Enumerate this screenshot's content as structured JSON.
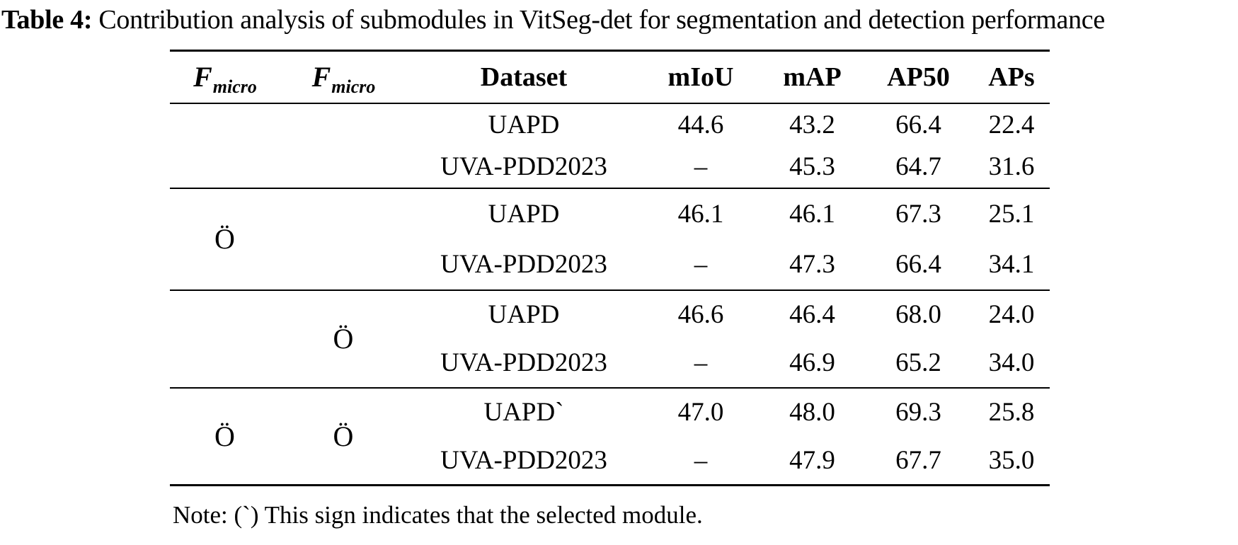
{
  "caption": {
    "label": "Table 4:",
    "text": " Contribution analysis of submodules in VitSeg-det for segmentation and detection performance"
  },
  "table": {
    "f_header": {
      "base": "F",
      "sub": "micro"
    },
    "columns": [
      "Dataset",
      "mIoU",
      "mAP",
      "AP50",
      "APs"
    ],
    "selected_mark": "Ö",
    "groups": [
      {
        "f1": "",
        "f2": "",
        "rows": [
          {
            "dataset": "UAPD",
            "miou": "44.6",
            "map": "43.2",
            "ap50": "66.4",
            "aps": "22.4"
          },
          {
            "dataset": "UVA-PDD2023",
            "miou": "–",
            "map": "45.3",
            "ap50": "64.7",
            "aps": "31.6"
          }
        ]
      },
      {
        "f1": "Ö",
        "f2": "",
        "rows": [
          {
            "dataset": "UAPD",
            "miou": "46.1",
            "map": "46.1",
            "ap50": "67.3",
            "aps": "25.1"
          },
          {
            "dataset": "UVA-PDD2023",
            "miou": "–",
            "map": "47.3",
            "ap50": "66.4",
            "aps": "34.1"
          }
        ]
      },
      {
        "f1": "",
        "f2": "Ö",
        "rows": [
          {
            "dataset": "UAPD",
            "miou": "46.6",
            "map": "46.4",
            "ap50": "68.0",
            "aps": "24.0"
          },
          {
            "dataset": "UVA-PDD2023",
            "miou": "–",
            "map": "46.9",
            "ap50": "65.2",
            "aps": "34.0"
          }
        ]
      },
      {
        "f1": "Ö",
        "f2": "Ö",
        "rows": [
          {
            "dataset": "UAPD`",
            "miou": "47.0",
            "map": "48.0",
            "ap50": "69.3",
            "aps": "25.8"
          },
          {
            "dataset": "UVA-PDD2023",
            "miou": "–",
            "map": "47.9",
            "ap50": "67.7",
            "aps": "35.0"
          }
        ]
      }
    ]
  },
  "note": "Note: (`) This sign indicates that the selected module."
}
